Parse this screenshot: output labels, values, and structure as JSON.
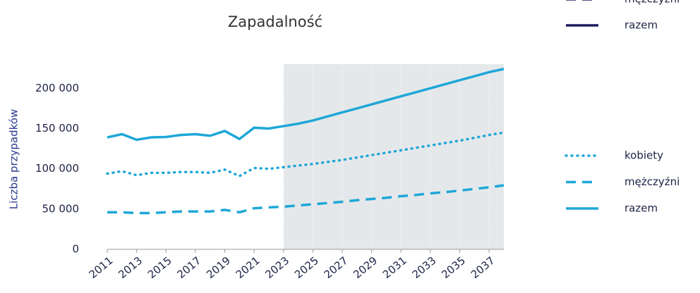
{
  "chart_data": {
    "type": "line",
    "title": "Zapadalność",
    "ylabel": "Liczba przypadków",
    "x": [
      2011,
      2012,
      2013,
      2014,
      2015,
      2016,
      2017,
      2018,
      2019,
      2020,
      2021,
      2022,
      2023,
      2024,
      2025,
      2026,
      2027,
      2028,
      2029,
      2030,
      2031,
      2032,
      2033,
      2034,
      2035,
      2036,
      2037,
      2038
    ],
    "series": [
      {
        "name": "kobiety",
        "color": "#1ea7d8",
        "dash": "dotted",
        "values": [
          94000,
          97000,
          92000,
          95000,
          95000,
          96000,
          96000,
          95000,
          99000,
          91000,
          101000,
          100000,
          102000,
          104000,
          106000,
          108500,
          111000,
          114000,
          117000,
          120000,
          123000,
          126000,
          129000,
          132000,
          135000,
          138500,
          142000,
          145000
        ]
      },
      {
        "name": "mężczyźni",
        "color": "#1ea7d8",
        "dash": "dashed",
        "values": [
          46000,
          46000,
          45000,
          45000,
          46000,
          47000,
          47000,
          47000,
          49000,
          46000,
          51000,
          52000,
          53000,
          54500,
          56000,
          57500,
          59000,
          61000,
          62500,
          64000,
          66000,
          67500,
          69500,
          71000,
          73000,
          75000,
          77000,
          79500
        ]
      },
      {
        "name": "razem",
        "color": "#1ea7d8",
        "dash": "solid",
        "values": [
          139000,
          143000,
          136000,
          139000,
          139500,
          142000,
          143000,
          141000,
          147000,
          137000,
          151000,
          150000,
          153000,
          156000,
          160000,
          165000,
          170000,
          175000,
          180000,
          185000,
          190000,
          195000,
          200000,
          205000,
          210000,
          215000,
          220000,
          224000
        ]
      }
    ],
    "legend_extra": [
      {
        "name": "mężczyźni",
        "color": "#1b1f5e",
        "dash": "dashed"
      },
      {
        "name": "razem",
        "color": "#1b1f5e",
        "dash": "solid"
      }
    ],
    "forecast_start": 2023,
    "forecast_color": "#e5e8ea",
    "xlim": [
      2011,
      2038
    ],
    "xticks": [
      2011,
      2013,
      2015,
      2017,
      2019,
      2021,
      2023,
      2025,
      2027,
      2029,
      2031,
      2033,
      2035,
      2037
    ],
    "ylim": [
      0,
      230000
    ],
    "yticks": [
      0,
      {
        "value": 50000,
        "label": "50 000"
      },
      {
        "value": 100000,
        "label": "100 000"
      },
      {
        "value": 150000,
        "label": "150 000"
      },
      {
        "value": 200000,
        "label": "200 000"
      }
    ],
    "grid": true
  }
}
